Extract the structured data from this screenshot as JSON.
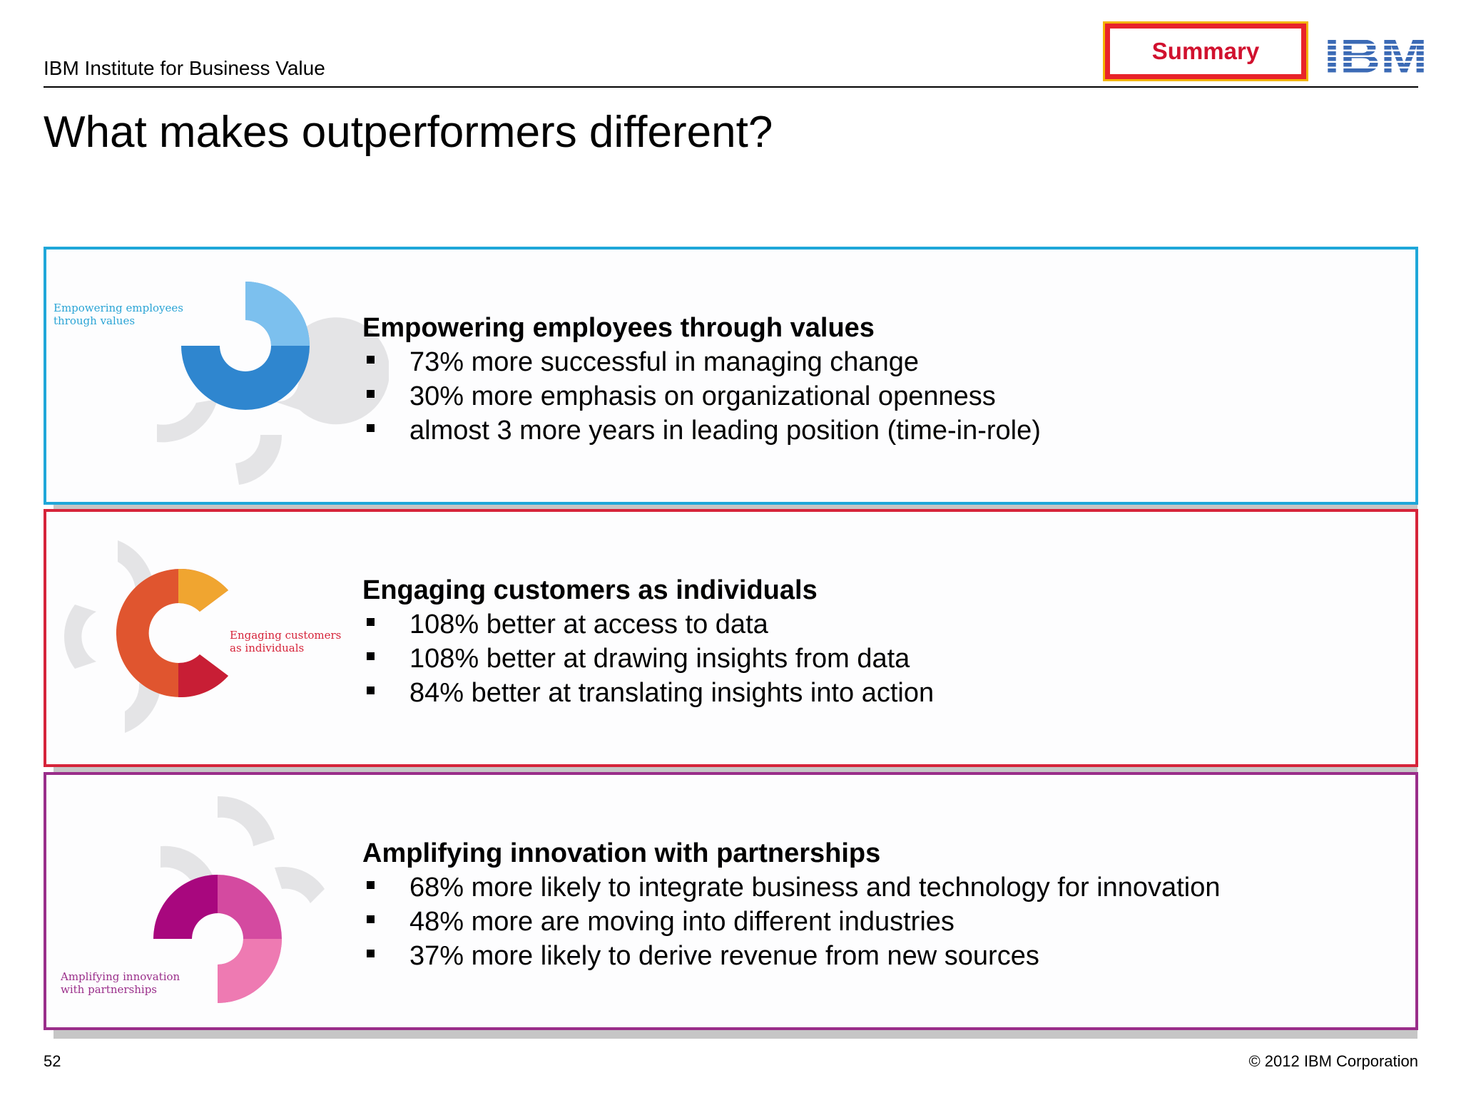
{
  "header": {
    "brand": "IBM Institute for Business Value",
    "summary_label": "Summary",
    "logo_text": "IBM"
  },
  "page_title": "What makes outperformers different?",
  "colors": {
    "blue": "#1fa7d9",
    "red": "#d6243a",
    "purple": "#9a2e8a",
    "summary_red": "#d1112e",
    "summary_gold": "#f2b400",
    "ibm_blue": "#3b6ab5"
  },
  "sections": [
    {
      "graphic_label_1": "Empowering employees",
      "graphic_label_2": "through values",
      "heading": "Empowering employees through values",
      "bullets": [
        "73% more successful in managing change",
        "30% more emphasis on organizational openness",
        "almost 3 more years in leading position (time-in-role)"
      ]
    },
    {
      "graphic_label_1": "Engaging customers",
      "graphic_label_2": "as individuals",
      "heading": "Engaging customers as individuals",
      "bullets": [
        "108% better at access to data",
        "108% better at drawing insights from data",
        "84% better at translating insights into action"
      ]
    },
    {
      "graphic_label_1": "Amplifying innovation",
      "graphic_label_2": "with partnerships",
      "heading": "Amplifying innovation with partnerships",
      "bullets": [
        "68% more likely to integrate business and technology for innovation",
        "48% more are moving into different industries",
        "37% more likely to derive revenue from new sources"
      ]
    }
  ],
  "footer": {
    "page_number": "52",
    "copyright": "© 2012 IBM Corporation"
  }
}
